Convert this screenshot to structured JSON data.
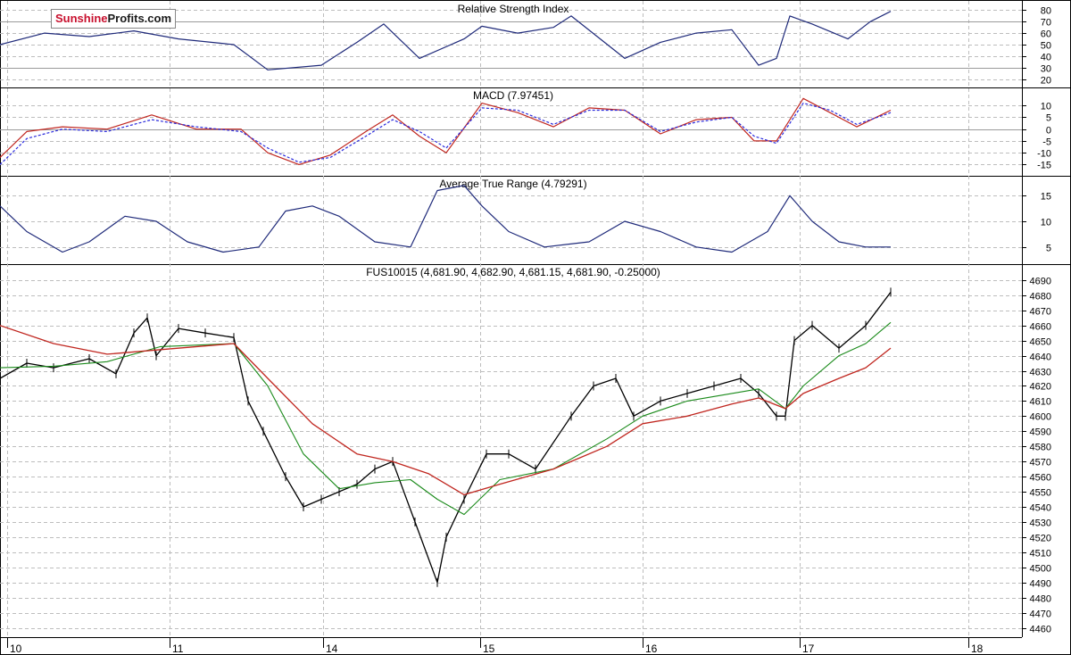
{
  "logo": {
    "part1": "Sunshine",
    "part2": "Profits.com"
  },
  "colors": {
    "price": "#000000",
    "sma_short": "#1a8a1a",
    "sma_long": "#c0261f",
    "indicator": "#1f2a7a",
    "signal": "#2a2adc",
    "grid": "#bdbdbd",
    "ref_line": "#9a9a9a"
  },
  "x_axis": {
    "labels": [
      "10",
      "11",
      "14",
      "15",
      "16",
      "17",
      "18"
    ]
  },
  "chart_data": [
    {
      "type": "line",
      "title": "Relative Strength Index",
      "ylim": [
        15,
        85
      ],
      "yticks": [
        20,
        30,
        40,
        50,
        60,
        70,
        80
      ],
      "reference_levels": [
        30,
        70
      ],
      "series": [
        {
          "x": [
            0,
            50,
            100,
            150,
            200,
            262,
            300,
            360,
            400,
            430,
            470,
            520,
            540,
            580,
            620,
            640,
            700,
            740,
            780,
            820,
            850,
            870,
            885,
            910,
            950,
            975,
            998
          ],
          "values": [
            50,
            60,
            57,
            62,
            55,
            50,
            28,
            32,
            52,
            68,
            38,
            55,
            66,
            60,
            65,
            75,
            38,
            52,
            60,
            63,
            32,
            38,
            75,
            68,
            55,
            70,
            79
          ]
        }
      ]
    },
    {
      "type": "line",
      "title": "MACD (7.97451)",
      "ylim": [
        -19,
        15
      ],
      "yticks": [
        10,
        5,
        0,
        -5,
        -10,
        -15
      ],
      "reference_levels": [
        0
      ],
      "series": [
        {
          "x": [
            0,
            30,
            70,
            120,
            170,
            220,
            270,
            300,
            335,
            370,
            410,
            440,
            470,
            500,
            540,
            580,
            620,
            660,
            700,
            740,
            780,
            820,
            845,
            870,
            900,
            930,
            960,
            998
          ],
          "values": [
            -12,
            -1,
            1,
            0,
            6,
            0,
            0,
            -10,
            -15,
            -11,
            -1,
            6,
            -3,
            -10,
            11,
            7,
            1,
            9,
            8,
            -2,
            4,
            5,
            -5,
            -5,
            13,
            7,
            1,
            8
          ]
        },
        {
          "x": [
            0,
            30,
            70,
            120,
            170,
            220,
            270,
            300,
            335,
            370,
            410,
            440,
            470,
            500,
            540,
            580,
            620,
            660,
            700,
            740,
            780,
            820,
            845,
            870,
            900,
            930,
            960,
            998
          ],
          "values": [
            -15,
            -4,
            0,
            -1,
            4,
            1,
            -1,
            -8,
            -14,
            -12,
            -3,
            4,
            -1,
            -8,
            9,
            8,
            2,
            8,
            8,
            -1,
            3,
            5,
            -3,
            -6,
            11,
            8,
            2,
            7
          ]
        }
      ]
    },
    {
      "type": "line",
      "title": "Average True Range (4.79291)",
      "ylim": [
        2,
        18
      ],
      "yticks": [
        15,
        10,
        5
      ],
      "series": [
        {
          "x": [
            0,
            30,
            70,
            100,
            140,
            175,
            210,
            250,
            290,
            320,
            350,
            380,
            420,
            460,
            490,
            520,
            540,
            570,
            610,
            660,
            700,
            740,
            780,
            820,
            860,
            885,
            910,
            940,
            970,
            998
          ],
          "values": [
            13,
            8,
            4,
            6,
            11,
            10,
            6,
            4,
            5,
            12,
            13,
            11,
            6,
            5,
            16,
            17,
            13,
            8,
            5,
            6,
            10,
            8,
            5,
            4,
            8,
            15,
            10,
            6,
            5,
            5
          ]
        }
      ]
    },
    {
      "type": "line",
      "title": "FUS10015 (4,681.90, 4,682.90, 4,681.15, 4,681.90, -0.25000)",
      "ylim": [
        4455,
        4697
      ],
      "yticks": [
        4690,
        4680,
        4670,
        4660,
        4650,
        4640,
        4630,
        4620,
        4610,
        4600,
        4590,
        4580,
        4570,
        4560,
        4550,
        4540,
        4530,
        4520,
        4510,
        4500,
        4490,
        4480,
        4470,
        4460
      ],
      "series": [
        {
          "name": "price",
          "x": [
            0,
            30,
            60,
            100,
            130,
            150,
            165,
            175,
            200,
            230,
            262,
            278,
            295,
            320,
            340,
            360,
            380,
            400,
            420,
            440,
            465,
            490,
            500,
            520,
            545,
            570,
            600,
            640,
            665,
            690,
            710,
            740,
            770,
            800,
            830,
            850,
            870,
            880,
            890,
            910,
            940,
            970,
            998
          ],
          "values": [
            4625,
            4635,
            4632,
            4638,
            4628,
            4655,
            4665,
            4640,
            4658,
            4655,
            4652,
            4610,
            4590,
            4560,
            4540,
            4545,
            4550,
            4555,
            4565,
            4570,
            4530,
            4490,
            4520,
            4545,
            4575,
            4575,
            4565,
            4600,
            4620,
            4625,
            4600,
            4610,
            4615,
            4620,
            4625,
            4615,
            4600,
            4600,
            4650,
            4660,
            4645,
            4660,
            4682
          ]
        },
        {
          "name": "sma_short",
          "x": [
            0,
            60,
            120,
            180,
            262,
            300,
            340,
            380,
            420,
            460,
            490,
            520,
            560,
            620,
            680,
            720,
            770,
            820,
            850,
            880,
            900,
            940,
            970,
            998
          ],
          "values": [
            4632,
            4633,
            4636,
            4646,
            4648,
            4620,
            4575,
            4552,
            4556,
            4558,
            4545,
            4535,
            4558,
            4565,
            4585,
            4600,
            4610,
            4615,
            4618,
            4605,
            4620,
            4640,
            4648,
            4662
          ]
        },
        {
          "name": "sma_long",
          "x": [
            0,
            60,
            120,
            180,
            262,
            300,
            350,
            400,
            440,
            480,
            520,
            560,
            620,
            680,
            720,
            770,
            820,
            850,
            880,
            900,
            940,
            970,
            998
          ],
          "values": [
            4660,
            4648,
            4641,
            4644,
            4648,
            4625,
            4595,
            4575,
            4570,
            4562,
            4548,
            4555,
            4565,
            4580,
            4595,
            4600,
            4608,
            4612,
            4605,
            4615,
            4625,
            4632,
            4645
          ]
        }
      ]
    }
  ]
}
